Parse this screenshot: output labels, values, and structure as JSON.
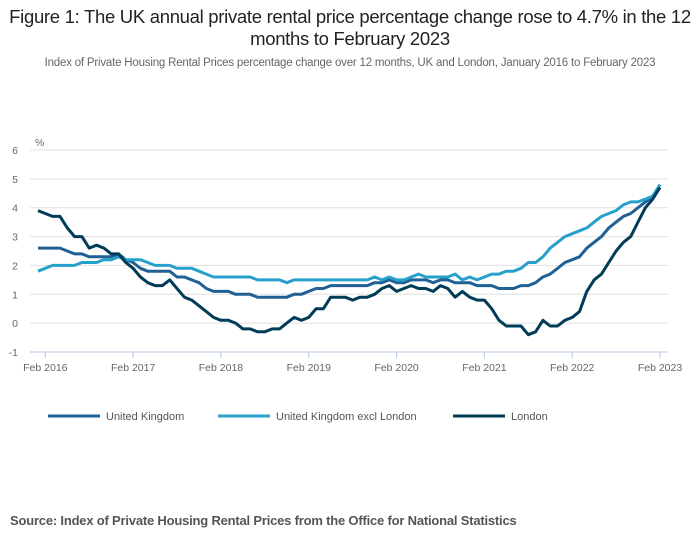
{
  "title": "Figure 1: The UK annual private rental price percentage change rose to 4.7% in the 12 months to February 2023",
  "subtitle": "Index of Private Housing Rental Prices percentage change over 12 months, UK and London, January 2016 to February 2023",
  "source": "Source: Index of Private Housing Rental Prices from the Office for National Statistics",
  "chart_data": {
    "type": "line",
    "ylabel": "%",
    "ylim": [
      -1,
      6
    ],
    "yticks": [
      "6",
      "5",
      "4",
      "3",
      "2",
      "1",
      "0",
      "-1"
    ],
    "xticks": [
      "Feb 2016",
      "Feb 2017",
      "Feb 2018",
      "Feb 2019",
      "Feb 2020",
      "Feb 2021",
      "Feb 2022",
      "Feb 2023"
    ],
    "x_start": "Jan 2016",
    "x_end": "Feb 2023",
    "frequency": "monthly",
    "grid": true,
    "legend_position": "bottom",
    "series": [
      {
        "name": "United Kingdom",
        "color": "#206095",
        "values": [
          2.6,
          2.6,
          2.6,
          2.6,
          2.5,
          2.4,
          2.4,
          2.3,
          2.3,
          2.3,
          2.3,
          2.4,
          2.2,
          2.1,
          1.9,
          1.8,
          1.8,
          1.8,
          1.8,
          1.6,
          1.6,
          1.5,
          1.4,
          1.2,
          1.1,
          1.1,
          1.1,
          1.0,
          1.0,
          1.0,
          0.9,
          0.9,
          0.9,
          0.9,
          0.9,
          1.0,
          1.0,
          1.1,
          1.2,
          1.2,
          1.3,
          1.3,
          1.3,
          1.3,
          1.3,
          1.3,
          1.4,
          1.4,
          1.5,
          1.4,
          1.4,
          1.5,
          1.5,
          1.5,
          1.4,
          1.5,
          1.5,
          1.4,
          1.4,
          1.4,
          1.3,
          1.3,
          1.3,
          1.2,
          1.2,
          1.2,
          1.3,
          1.3,
          1.4,
          1.6,
          1.7,
          1.9,
          2.1,
          2.2,
          2.3,
          2.6,
          2.8,
          3.0,
          3.3,
          3.5,
          3.7,
          3.8,
          4.0,
          4.2,
          4.4,
          4.7
        ]
      },
      {
        "name": "United Kingdom excl London",
        "color": "#27a0cc",
        "values": [
          1.8,
          1.9,
          2.0,
          2.0,
          2.0,
          2.0,
          2.1,
          2.1,
          2.1,
          2.2,
          2.2,
          2.3,
          2.2,
          2.2,
          2.2,
          2.1,
          2.0,
          2.0,
          2.0,
          1.9,
          1.9,
          1.9,
          1.8,
          1.7,
          1.6,
          1.6,
          1.6,
          1.6,
          1.6,
          1.6,
          1.5,
          1.5,
          1.5,
          1.5,
          1.4,
          1.5,
          1.5,
          1.5,
          1.5,
          1.5,
          1.5,
          1.5,
          1.5,
          1.5,
          1.5,
          1.5,
          1.6,
          1.5,
          1.6,
          1.5,
          1.5,
          1.6,
          1.7,
          1.6,
          1.6,
          1.6,
          1.6,
          1.7,
          1.5,
          1.6,
          1.5,
          1.6,
          1.7,
          1.7,
          1.8,
          1.8,
          1.9,
          2.1,
          2.1,
          2.3,
          2.6,
          2.8,
          3.0,
          3.1,
          3.2,
          3.3,
          3.5,
          3.7,
          3.8,
          3.9,
          4.1,
          4.2,
          4.2,
          4.3,
          4.4,
          4.8
        ]
      },
      {
        "name": "London",
        "color": "#003c57",
        "values": [
          3.9,
          3.8,
          3.7,
          3.7,
          3.3,
          3.0,
          3.0,
          2.6,
          2.7,
          2.6,
          2.4,
          2.4,
          2.1,
          1.9,
          1.6,
          1.4,
          1.3,
          1.3,
          1.5,
          1.2,
          0.9,
          0.8,
          0.6,
          0.4,
          0.2,
          0.1,
          0.1,
          0.0,
          -0.2,
          -0.2,
          -0.3,
          -0.3,
          -0.2,
          -0.2,
          0.0,
          0.2,
          0.1,
          0.2,
          0.5,
          0.5,
          0.9,
          0.9,
          0.9,
          0.8,
          0.9,
          0.9,
          1.0,
          1.2,
          1.3,
          1.1,
          1.2,
          1.3,
          1.2,
          1.2,
          1.1,
          1.3,
          1.2,
          0.9,
          1.1,
          0.9,
          0.8,
          0.8,
          0.5,
          0.1,
          -0.1,
          -0.1,
          -0.1,
          -0.4,
          -0.3,
          0.1,
          -0.1,
          -0.1,
          0.1,
          0.2,
          0.4,
          1.1,
          1.5,
          1.7,
          2.1,
          2.5,
          2.8,
          3.0,
          3.5,
          4.0,
          4.3,
          4.7
        ]
      }
    ]
  }
}
